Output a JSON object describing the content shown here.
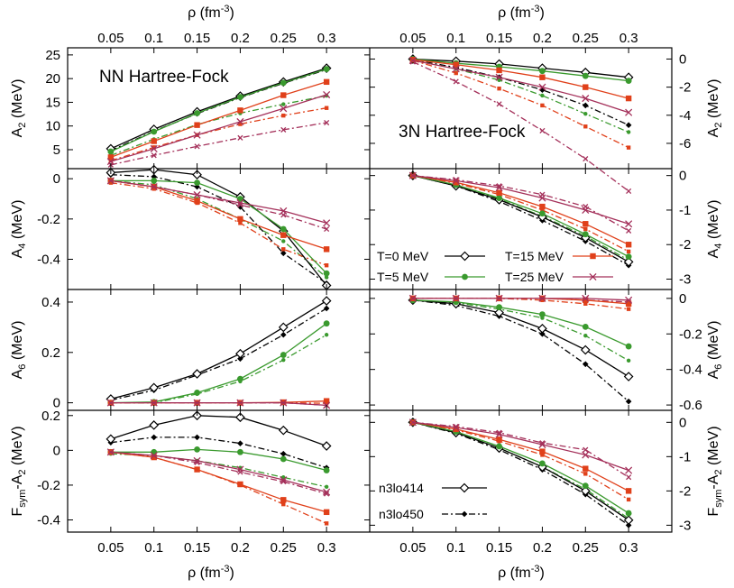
{
  "chart_data": {
    "type": "line",
    "x_label": "ρ (fm⁻³)",
    "x_ticks": [
      0.05,
      0.1,
      0.15,
      0.2,
      0.25,
      0.3
    ],
    "x_tick_labels": [
      "0.05",
      "0.1",
      "0.15",
      "0.2",
      "0.25",
      "0.3"
    ],
    "xlim": [
      0.0,
      0.35
    ],
    "temperatures": [
      {
        "label": "T=0 MeV",
        "color": "#000000",
        "marker": "diamond"
      },
      {
        "label": "T=5 MeV",
        "color": "#3a9a2e",
        "marker": "circle"
      },
      {
        "label": "T=15 MeV",
        "color": "#e0401a",
        "marker": "square"
      },
      {
        "label": "T=25 MeV",
        "color": "#a4305a",
        "marker": "cross"
      }
    ],
    "potentials": [
      {
        "label": "n3lo414",
        "style": "solid",
        "marker": "diamond"
      },
      {
        "label": "n3lo450",
        "style": "dashdot",
        "marker": "small-diamond"
      }
    ],
    "x": [
      0.05,
      0.1,
      0.15,
      0.2,
      0.25,
      0.3
    ],
    "panels": [
      {
        "id": "A2-NN",
        "column": "NN Hartree-Fock",
        "ylabel": "A2 (MeV)",
        "ylim": [
          1.0,
          26.5
        ],
        "yticks": [
          5,
          10,
          15,
          20,
          25
        ],
        "ytick_labels": [
          "5",
          "10",
          "15",
          "20",
          "25"
        ],
        "annotation": "NN Hartree-Fock",
        "series": {
          "n3lo414": [
            [
              5.2,
              9.3,
              13.0,
              16.3,
              19.3,
              22.2
            ],
            [
              4.6,
              8.8,
              12.7,
              16.1,
              19.1,
              22.0
            ],
            [
              3.4,
              6.8,
              10.2,
              13.3,
              16.5,
              19.3
            ],
            [
              2.5,
              5.2,
              8.1,
              10.9,
              13.7,
              16.6
            ]
          ],
          "n3lo450": [
            [
              4.8,
              8.9,
              12.6,
              16.0,
              19.0,
              21.9
            ],
            [
              3.8,
              7.2,
              10.3,
              12.7,
              14.6,
              16.4
            ],
            [
              2.7,
              5.5,
              8.1,
              10.4,
              12.2,
              13.8
            ],
            [
              1.8,
              3.8,
              5.7,
              7.5,
              9.2,
              10.7
            ]
          ]
        }
      },
      {
        "id": "A2-3N",
        "column": "3N Hartree-Fock",
        "ylabel": "A2 (MeV)",
        "ylim": [
          -7.8,
          0.8
        ],
        "yticks": [
          0,
          -2,
          -4,
          -6
        ],
        "ytick_labels": [
          "0",
          "-2",
          "-4",
          "-6"
        ],
        "annotation": "3N Hartree-Fock",
        "series": {
          "n3lo414": [
            [
              0.0,
              -0.15,
              -0.35,
              -0.65,
              -0.95,
              -1.3
            ],
            [
              0.0,
              -0.3,
              -0.55,
              -0.85,
              -1.2,
              -1.55
            ],
            [
              -0.05,
              -0.4,
              -0.8,
              -1.3,
              -2.0,
              -2.8
            ],
            [
              -0.1,
              -0.7,
              -1.3,
              -2.0,
              -2.8,
              -3.8
            ]
          ],
          "n3lo450": [
            [
              -0.05,
              -0.6,
              -1.3,
              -2.2,
              -3.3,
              -4.7
            ],
            [
              -0.08,
              -0.7,
              -1.5,
              -2.6,
              -3.9,
              -5.2
            ],
            [
              -0.1,
              -1.0,
              -2.1,
              -3.3,
              -4.8,
              -6.3
            ],
            [
              -0.2,
              -1.6,
              -3.2,
              -5.1,
              -7.1,
              -9.4
            ]
          ]
        }
      },
      {
        "id": "A4-NN",
        "column": "NN Hartree-Fock",
        "ylabel": "A4 (MeV)",
        "ylim": [
          -0.55,
          0.05
        ],
        "yticks": [
          0,
          -0.2,
          -0.4
        ],
        "ytick_labels": [
          "0",
          "-0.2",
          "-0.4"
        ],
        "series": {
          "n3lo414": [
            [
              0.03,
              0.045,
              0.02,
              -0.09,
              -0.26,
              -0.53
            ],
            [
              -0.01,
              -0.01,
              -0.02,
              -0.1,
              -0.25,
              -0.47
            ],
            [
              -0.01,
              -0.04,
              -0.11,
              -0.2,
              -0.28,
              -0.35
            ],
            [
              -0.01,
              -0.04,
              -0.08,
              -0.12,
              -0.16,
              -0.22
            ]
          ],
          "n3lo450": [
            [
              0.02,
              0.01,
              -0.04,
              -0.14,
              -0.37,
              -0.52
            ],
            [
              -0.01,
              -0.03,
              -0.1,
              -0.2,
              -0.31,
              -0.49
            ],
            [
              -0.02,
              -0.05,
              -0.12,
              -0.22,
              -0.35,
              -0.43
            ],
            [
              -0.01,
              -0.04,
              -0.08,
              -0.13,
              -0.18,
              -0.25
            ]
          ]
        }
      },
      {
        "id": "A4-3N",
        "column": "3N Hartree-Fock",
        "ylabel": "A4 (MeV)",
        "ylim": [
          -3.3,
          0.2
        ],
        "yticks": [
          0,
          -1,
          -2,
          -3
        ],
        "ytick_labels": [
          "0",
          "-1",
          "-2",
          "-3"
        ],
        "series": {
          "n3lo414": [
            [
              0.0,
              -0.3,
              -0.7,
              -1.2,
              -1.8,
              -2.5
            ],
            [
              0.0,
              -0.27,
              -0.65,
              -1.1,
              -1.7,
              -2.35
            ],
            [
              0.0,
              -0.2,
              -0.5,
              -0.9,
              -1.4,
              -2.0
            ],
            [
              0.0,
              -0.15,
              -0.35,
              -0.65,
              -1.0,
              -1.4
            ]
          ],
          "n3lo450": [
            [
              0.0,
              -0.3,
              -0.75,
              -1.3,
              -1.9,
              -2.6
            ],
            [
              0.0,
              -0.28,
              -0.68,
              -1.18,
              -1.75,
              -2.45
            ],
            [
              0.0,
              -0.22,
              -0.55,
              -1.0,
              -1.55,
              -2.2
            ],
            [
              0.0,
              -0.12,
              -0.3,
              -0.55,
              -0.9,
              -1.6
            ]
          ]
        }
      },
      {
        "id": "A6-NN",
        "column": "NN Hartree-Fock",
        "ylabel": "A6 (MeV)",
        "ylim": [
          -0.03,
          0.45
        ],
        "yticks": [
          0,
          0.2,
          0.4
        ],
        "ytick_labels": [
          "0",
          "0.2",
          "0.4"
        ],
        "series": {
          "n3lo414": [
            [
              0.015,
              0.06,
              0.115,
              0.195,
              0.3,
              0.405
            ],
            [
              0.0,
              0.003,
              0.04,
              0.095,
              0.19,
              0.315
            ],
            [
              0.0,
              0.0,
              0.0,
              0.0,
              0.002,
              0.007
            ],
            [
              0.0,
              0.0,
              0.0,
              0.0,
              0.0,
              -0.01
            ]
          ],
          "n3lo450": [
            [
              0.01,
              0.05,
              0.11,
              0.175,
              0.27,
              0.375
            ],
            [
              0.0,
              0.0,
              0.035,
              0.085,
              0.17,
              0.27
            ],
            [
              0.0,
              0.0,
              0.0,
              0.0,
              0.0,
              -0.002
            ],
            [
              0.0,
              0.0,
              0.0,
              0.0,
              0.0,
              -0.01
            ]
          ]
        }
      },
      {
        "id": "A6-3N",
        "column": "3N Hartree-Fock",
        "ylabel": "A6 (MeV)",
        "ylim": [
          -0.63,
          0.05
        ],
        "yticks": [
          0,
          -0.2,
          -0.4,
          -0.6
        ],
        "ytick_labels": [
          "0",
          "-0.2",
          "-0.4",
          "-0.6"
        ],
        "series": {
          "n3lo414": [
            [
              -0.01,
              -0.03,
              -0.08,
              -0.17,
              -0.29,
              -0.44
            ],
            [
              -0.01,
              -0.02,
              -0.05,
              -0.09,
              -0.16,
              -0.27
            ],
            [
              0.0,
              0.0,
              0.0,
              0.0,
              -0.01,
              -0.03
            ],
            [
              0.0,
              0.0,
              0.0,
              0.0,
              0.0,
              -0.01
            ]
          ],
          "n3lo450": [
            [
              -0.01,
              -0.04,
              -0.1,
              -0.2,
              -0.37,
              -0.58
            ],
            [
              -0.01,
              -0.025,
              -0.06,
              -0.11,
              -0.21,
              -0.35
            ],
            [
              0.0,
              0.0,
              0.0,
              -0.01,
              -0.03,
              -0.06
            ],
            [
              0.0,
              0.0,
              0.0,
              0.0,
              -0.01,
              -0.02
            ]
          ]
        }
      },
      {
        "id": "Fsym-NN",
        "column": "NN Hartree-Fock",
        "ylabel": "Fsym-A2 (MeV)",
        "ylim": [
          -0.47,
          0.23
        ],
        "yticks": [
          0.2,
          0,
          -0.2,
          -0.4
        ],
        "ytick_labels": [
          "0.2",
          "0",
          "-0.2",
          "-0.4"
        ],
        "series": {
          "n3lo414": [
            [
              0.065,
              0.145,
              0.2,
              0.19,
              0.115,
              0.025
            ],
            [
              -0.01,
              -0.01,
              0.005,
              -0.01,
              -0.05,
              -0.115
            ],
            [
              -0.01,
              -0.04,
              -0.11,
              -0.195,
              -0.285,
              -0.355
            ],
            [
              -0.01,
              -0.03,
              -0.06,
              -0.11,
              -0.17,
              -0.24
            ]
          ],
          "n3lo450": [
            [
              0.045,
              0.075,
              0.075,
              0.04,
              -0.02,
              -0.1
            ],
            [
              -0.02,
              -0.03,
              -0.06,
              -0.1,
              -0.155,
              -0.21
            ],
            [
              -0.01,
              -0.04,
              -0.11,
              -0.2,
              -0.31,
              -0.42
            ],
            [
              -0.01,
              -0.03,
              -0.07,
              -0.125,
              -0.18,
              -0.25
            ]
          ]
        }
      },
      {
        "id": "Fsym-3N",
        "column": "3N Hartree-Fock",
        "ylabel": "Fsym-A2 (MeV)",
        "ylim": [
          -3.2,
          0.35
        ],
        "yticks": [
          0,
          -1,
          -2,
          -3
        ],
        "ytick_labels": [
          "0",
          "-1",
          "-2",
          "-3"
        ],
        "series": {
          "n3lo414": [
            [
              0.0,
              -0.3,
              -0.75,
              -1.3,
              -2.0,
              -2.85
            ],
            [
              0.0,
              -0.27,
              -0.7,
              -1.2,
              -1.85,
              -2.65
            ],
            [
              0.0,
              -0.2,
              -0.5,
              -0.85,
              -1.35,
              -2.0
            ],
            [
              0.0,
              -0.15,
              -0.35,
              -0.65,
              -0.95,
              -1.4
            ]
          ],
          "n3lo450": [
            [
              0.0,
              -0.32,
              -0.8,
              -1.38,
              -2.1,
              -3.0
            ],
            [
              0.0,
              -0.3,
              -0.75,
              -1.3,
              -1.95,
              -2.8
            ],
            [
              0.0,
              -0.22,
              -0.55,
              -0.95,
              -1.5,
              -2.25
            ],
            [
              0.0,
              -0.12,
              -0.3,
              -0.6,
              -0.8,
              -1.6
            ]
          ]
        }
      }
    ]
  },
  "axis_labels": {
    "x": "ρ (fm",
    "x_exp": "-3",
    "x_close": ")",
    "A2": "A",
    "A2_sub": "2",
    "A4": "A",
    "A4_sub": "4",
    "A6": "A",
    "A6_sub": "6",
    "Fsym": "F",
    "Fsym_sub": "sym",
    "Fsym_mid": "-A",
    "unit": " (MeV)"
  }
}
